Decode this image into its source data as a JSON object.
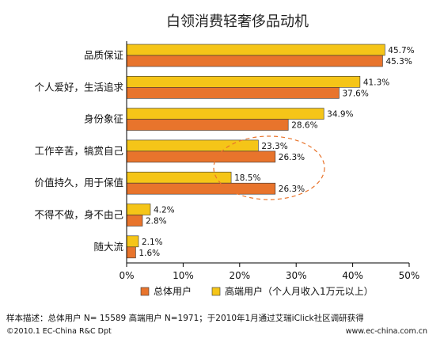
{
  "chart_data": {
    "type": "bar",
    "title": "白领消费轻奢侈品动机",
    "categories": [
      "品质保证",
      "个人爱好，生活追求",
      "身份象征",
      "工作辛苦，犒赏自己",
      "价值持久，用于保值",
      "不得不做，身不由己",
      "随大流"
    ],
    "series": [
      {
        "name": "高端用户（个人月收入1万元以上）",
        "color": "#f5c518",
        "values": [
          45.7,
          41.3,
          34.9,
          23.3,
          18.5,
          4.2,
          2.1
        ]
      },
      {
        "name": "总体用户",
        "color": "#e8742c",
        "values": [
          45.3,
          37.6,
          28.6,
          26.3,
          26.3,
          2.8,
          1.6
        ]
      }
    ],
    "value_labels": [
      [
        "45.7%",
        "41.3%",
        "34.9%",
        "23.3%",
        "18.5%",
        "4.2%",
        "2.1%"
      ],
      [
        "45.3%",
        "37.6%",
        "28.6%",
        "26.3%",
        "26.3%",
        "2.8%",
        "1.6%"
      ]
    ],
    "xlim": [
      0,
      50
    ],
    "xticks": [
      "0%",
      "10%",
      "20%",
      "30%",
      "40%",
      "50%"
    ],
    "grid": false,
    "legend_position": "bottom",
    "legend": [
      "总体用户",
      "高端用户（个人月收入1万元以上）"
    ]
  },
  "footnote": "样本描述：总体用户 N= 15589  高端用户 N=1971；于2010年1月通过艾瑞iClick社区调研获得",
  "copyright": "©2010.1 EC-China R&C Dpt",
  "website": "www.ec-china.com.cn"
}
